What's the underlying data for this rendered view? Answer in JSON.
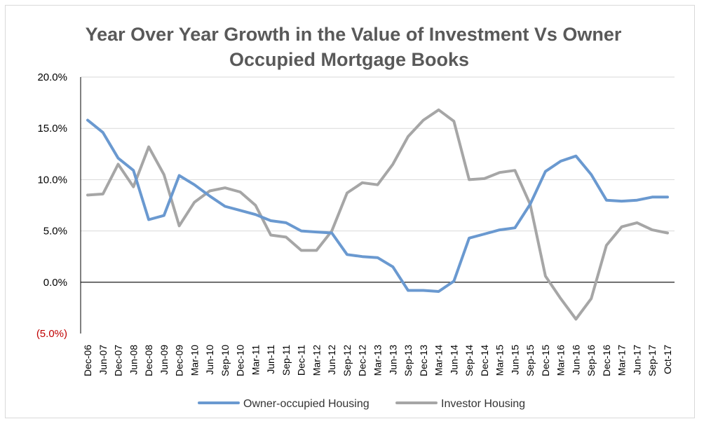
{
  "chart_data": {
    "type": "line",
    "title_lines": [
      "Year Over Year Growth  in the Value of Investment Vs Owner",
      "Occupied Mortgage Books"
    ],
    "ylim": [
      -5,
      20
    ],
    "yticks": [
      {
        "value": 20,
        "label": "20.0%"
      },
      {
        "value": 15,
        "label": "15.0%"
      },
      {
        "value": 10,
        "label": "10.0%"
      },
      {
        "value": 5,
        "label": "5.0%"
      },
      {
        "value": 0,
        "label": "0.0%"
      },
      {
        "value": -5,
        "label": "(5.0%)"
      }
    ],
    "grid": true,
    "legend_position": "bottom",
    "categories": [
      "Dec-06",
      "Jun-07",
      "Dec-07",
      "Jun-08",
      "Dec-08",
      "Jun-09",
      "Dec-09",
      "Mar-10",
      "Jun-10",
      "Sep-10",
      "Dec-10",
      "Mar-11",
      "Jun-11",
      "Sep-11",
      "Dec-11",
      "Mar-12",
      "Jun-12",
      "Sep-12",
      "Dec-12",
      "Mar-13",
      "Jun-13",
      "Sep-13",
      "Dec-13",
      "Mar-14",
      "Jun-14",
      "Sep-14",
      "Dec-14",
      "Mar-15",
      "Jun-15",
      "Sep-15",
      "Dec-15",
      "Mar-16",
      "Jun-16",
      "Sep-16",
      "Dec-16",
      "Mar-17",
      "Jun-17",
      "Sep-17",
      "Oct-17"
    ],
    "series": [
      {
        "name": "Owner-occupied Housing",
        "color": "#6a99d0",
        "values": [
          15.8,
          14.6,
          12.1,
          10.9,
          6.1,
          6.5,
          10.4,
          9.5,
          8.4,
          7.4,
          7.0,
          6.6,
          6.0,
          5.8,
          5.0,
          4.9,
          4.8,
          2.7,
          2.5,
          2.4,
          1.5,
          -0.8,
          -0.8,
          -0.9,
          0.1,
          4.3,
          4.7,
          5.1,
          5.3,
          7.6,
          10.8,
          11.8,
          12.3,
          10.5,
          8.0,
          7.9,
          8.0,
          8.3,
          8.3
        ]
      },
      {
        "name": "Investor Housing",
        "color": "#a6a6a6",
        "values": [
          8.5,
          8.6,
          11.5,
          9.3,
          13.2,
          10.5,
          5.5,
          7.8,
          8.9,
          9.2,
          8.8,
          7.5,
          4.6,
          4.4,
          3.1,
          3.1,
          5.0,
          8.7,
          9.7,
          9.5,
          11.5,
          14.2,
          15.8,
          16.8,
          15.7,
          10.0,
          10.1,
          10.7,
          10.9,
          7.6,
          0.6,
          -1.6,
          -3.6,
          -1.6,
          3.6,
          5.4,
          5.8,
          5.1,
          4.8
        ]
      }
    ]
  }
}
